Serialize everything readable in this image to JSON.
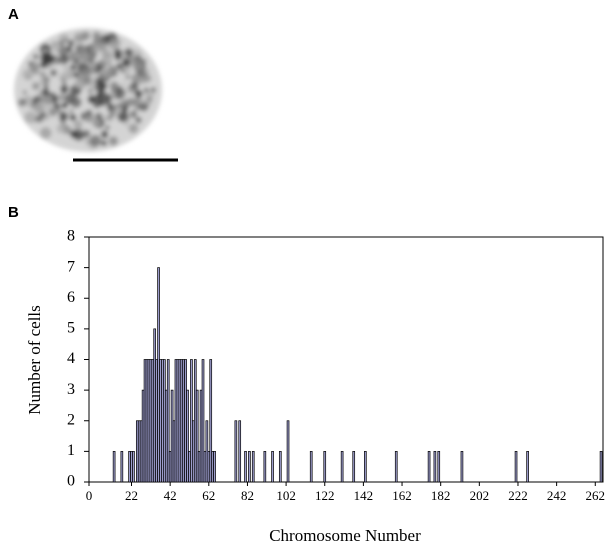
{
  "panel_a": {
    "label": "A"
  },
  "chart_data": {
    "type": "bar",
    "panel_label": "B",
    "xlabel": "Chromosome Number",
    "ylabel": "Number of cells",
    "x": [
      13,
      17,
      21,
      22,
      23,
      25,
      26,
      27,
      28,
      29,
      30,
      31,
      32,
      33,
      34,
      35,
      36,
      37,
      38,
      39,
      40,
      41,
      42,
      43,
      44,
      45,
      46,
      47,
      48,
      49,
      50,
      51,
      52,
      53,
      54,
      55,
      56,
      57,
      58,
      59,
      60,
      61,
      62,
      63,
      64,
      65,
      76,
      78,
      81,
      83,
      85,
      91,
      95,
      99,
      103,
      115,
      122,
      131,
      137,
      143,
      159,
      176,
      179,
      181,
      193,
      221,
      227,
      265
    ],
    "values": [
      1,
      1,
      1,
      1,
      1,
      2,
      2,
      2,
      3,
      4,
      4,
      4,
      4,
      4,
      5,
      4,
      7,
      4,
      4,
      4,
      3,
      4,
      1,
      3,
      2,
      4,
      4,
      4,
      4,
      4,
      4,
      3,
      1,
      4,
      2,
      4,
      3,
      1,
      3,
      4,
      1,
      2,
      1,
      4,
      1,
      1,
      2,
      2,
      1,
      1,
      1,
      1,
      1,
      1,
      2,
      1,
      1,
      1,
      1,
      1,
      1,
      1,
      1,
      1,
      1,
      1,
      1,
      1
    ],
    "color": "#9c9ccc",
    "xlim": [
      0,
      266
    ],
    "xticks": [
      0,
      22,
      42,
      62,
      82,
      102,
      122,
      142,
      162,
      182,
      202,
      222,
      242,
      262
    ],
    "ylim": [
      0,
      8
    ],
    "yticks": [
      0,
      1,
      2,
      3,
      4,
      5,
      6,
      7,
      8
    ]
  }
}
